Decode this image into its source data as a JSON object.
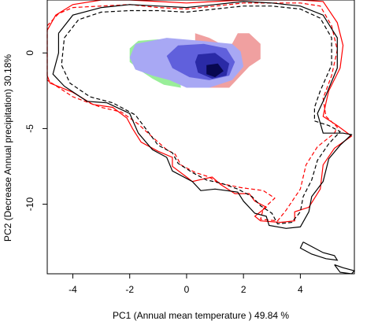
{
  "chart_data": {
    "type": "density-overlap",
    "xlabel": "PC1 (Annual mean temperature ) 49.84 %",
    "ylabel": "PC2 (Decrease Annual precipitation) 30.18%",
    "xlim": [
      -4.9,
      5.9
    ],
    "ylim": [
      -14.6,
      3.5
    ],
    "x_ticks": [
      -4,
      -2,
      0,
      2,
      4
    ],
    "y_ticks": [
      0,
      -5,
      -10
    ],
    "density_regions": [
      {
        "color": "#99ee99",
        "points": [
          [
            -2.0,
            0.3
          ],
          [
            -1.7,
            0.8
          ],
          [
            -1.0,
            0.9
          ],
          [
            -0.4,
            0.6
          ],
          [
            -0.3,
            -0.5
          ],
          [
            -0.2,
            -2.3
          ],
          [
            -0.8,
            -2.1
          ],
          [
            -1.2,
            -1.7
          ],
          [
            -1.6,
            -1.2
          ],
          [
            -2.0,
            -0.6
          ]
        ]
      },
      {
        "color": "#f0a0a0",
        "points": [
          [
            0.3,
            1.3
          ],
          [
            0.8,
            1.0
          ],
          [
            1.2,
            0.6
          ],
          [
            1.6,
            0.6
          ],
          [
            1.8,
            1.3
          ],
          [
            2.2,
            1.3
          ],
          [
            2.6,
            0.6
          ],
          [
            2.6,
            -0.4
          ],
          [
            2.2,
            -0.9
          ],
          [
            1.9,
            -1.5
          ],
          [
            1.5,
            -2.3
          ],
          [
            0.8,
            -2.3
          ],
          [
            0.3,
            -2.0
          ]
        ]
      },
      {
        "color": "#a8a8f4",
        "points": [
          [
            -1.8,
            0.6
          ],
          [
            -0.7,
            1.0
          ],
          [
            0.5,
            0.8
          ],
          [
            1.6,
            0.6
          ],
          [
            1.9,
            0.1
          ],
          [
            2.0,
            -0.9
          ],
          [
            1.6,
            -1.8
          ],
          [
            0.8,
            -2.3
          ],
          [
            0.0,
            -2.3
          ],
          [
            -0.6,
            -1.8
          ],
          [
            -1.2,
            -1.5
          ],
          [
            -1.8,
            -1.1
          ],
          [
            -2.0,
            -0.3
          ]
        ]
      },
      {
        "color": "#6060dc",
        "points": [
          [
            -0.3,
            0.5
          ],
          [
            0.6,
            0.6
          ],
          [
            1.4,
            0.3
          ],
          [
            1.7,
            -0.6
          ],
          [
            1.5,
            -1.5
          ],
          [
            0.8,
            -1.8
          ],
          [
            0.1,
            -1.6
          ],
          [
            -0.5,
            -1.0
          ],
          [
            -0.7,
            -0.2
          ]
        ]
      },
      {
        "color": "#2a2aa6",
        "points": [
          [
            0.4,
            -0.1
          ],
          [
            1.0,
            0.0
          ],
          [
            1.5,
            -0.7
          ],
          [
            1.4,
            -1.5
          ],
          [
            0.9,
            -1.7
          ],
          [
            0.4,
            -1.3
          ],
          [
            0.3,
            -0.6
          ]
        ]
      },
      {
        "color": "#080850",
        "points": [
          [
            0.7,
            -0.8
          ],
          [
            1.1,
            -0.7
          ],
          [
            1.3,
            -1.2
          ],
          [
            1.0,
            -1.6
          ],
          [
            0.7,
            -1.4
          ]
        ]
      }
    ],
    "series": [
      {
        "color": "#ff0000",
        "dash": "solid",
        "points": [
          [
            -4.9,
            1.5
          ],
          [
            -4.6,
            2.5
          ],
          [
            -4.0,
            3.2
          ],
          [
            -3.0,
            3.5
          ],
          [
            -2.0,
            3.5
          ],
          [
            -1.0,
            3.4
          ],
          [
            0.0,
            3.3
          ],
          [
            1.0,
            3.4
          ],
          [
            2.0,
            3.5
          ],
          [
            3.0,
            3.5
          ],
          [
            4.0,
            3.5
          ],
          [
            4.8,
            3.4
          ],
          [
            5.3,
            2.0
          ],
          [
            5.5,
            0.5
          ],
          [
            5.4,
            -1.0
          ],
          [
            5.0,
            -2.5
          ],
          [
            4.9,
            -3.3
          ],
          [
            4.8,
            -4.2
          ],
          [
            5.3,
            -4.8
          ],
          [
            5.8,
            -5.5
          ],
          [
            5.2,
            -6.3
          ],
          [
            4.8,
            -7.4
          ],
          [
            4.7,
            -9.0
          ],
          [
            4.3,
            -10.2
          ],
          [
            3.8,
            -10.5
          ],
          [
            3.8,
            -11.1
          ],
          [
            3.3,
            -11.2
          ],
          [
            2.6,
            -11.1
          ],
          [
            2.4,
            -10.8
          ],
          [
            2.8,
            -10.2
          ],
          [
            2.4,
            -9.8
          ],
          [
            2.2,
            -9.3
          ],
          [
            1.7,
            -9.3
          ],
          [
            1.2,
            -8.7
          ],
          [
            0.9,
            -8.2
          ],
          [
            0.2,
            -8.5
          ],
          [
            0.0,
            -8.2
          ],
          [
            -0.5,
            -7.5
          ],
          [
            -0.5,
            -6.9
          ],
          [
            -1.0,
            -6.5
          ],
          [
            -1.6,
            -5.9
          ],
          [
            -1.9,
            -5.0
          ],
          [
            -2.1,
            -4.3
          ],
          [
            -2.6,
            -3.6
          ],
          [
            -3.3,
            -3.4
          ],
          [
            -4.0,
            -2.6
          ],
          [
            -4.8,
            -2.0
          ],
          [
            -4.9,
            -1.5
          ]
        ]
      },
      {
        "color": "#ff0000",
        "dash": "dashed",
        "points": [
          [
            -4.9,
            1.8
          ],
          [
            -4.5,
            2.6
          ],
          [
            -4.0,
            3.0
          ],
          [
            -3.0,
            3.1
          ],
          [
            -2.0,
            3.2
          ],
          [
            -1.0,
            3.0
          ],
          [
            0.0,
            2.9
          ],
          [
            1.0,
            3.1
          ],
          [
            2.0,
            3.3
          ],
          [
            3.0,
            3.3
          ],
          [
            4.0,
            3.3
          ],
          [
            4.7,
            3.1
          ],
          [
            5.1,
            1.8
          ],
          [
            5.3,
            0.2
          ],
          [
            5.1,
            -1.5
          ],
          [
            4.8,
            -3.0
          ],
          [
            4.9,
            -4.2
          ],
          [
            5.3,
            -4.9
          ],
          [
            5.2,
            -5.3
          ],
          [
            4.6,
            -6.2
          ],
          [
            4.2,
            -7.4
          ],
          [
            4.0,
            -9.0
          ],
          [
            3.5,
            -10.4
          ],
          [
            3.2,
            -11.1
          ],
          [
            2.6,
            -11.0
          ],
          [
            2.7,
            -10.3
          ],
          [
            3.1,
            -9.6
          ],
          [
            2.7,
            -9.1
          ],
          [
            1.9,
            -8.9
          ],
          [
            1.1,
            -8.6
          ],
          [
            0.8,
            -8.2
          ],
          [
            0.3,
            -7.9
          ],
          [
            -0.2,
            -7.4
          ],
          [
            -0.4,
            -6.7
          ],
          [
            -0.7,
            -6.4
          ],
          [
            -1.3,
            -5.4
          ],
          [
            -1.7,
            -4.7
          ],
          [
            -2.3,
            -3.9
          ],
          [
            -3.0,
            -3.6
          ],
          [
            -4.0,
            -2.9
          ],
          [
            -4.9,
            -1.8
          ]
        ]
      },
      {
        "color": "#000000",
        "dash": "solid",
        "points": [
          [
            -4.5,
            1.3
          ],
          [
            -4.0,
            2.5
          ],
          [
            -3.0,
            3.0
          ],
          [
            -2.0,
            3.2
          ],
          [
            -1.0,
            3.1
          ],
          [
            0.0,
            3.0
          ],
          [
            1.0,
            3.2
          ],
          [
            2.0,
            3.4
          ],
          [
            3.0,
            3.3
          ],
          [
            4.0,
            3.1
          ],
          [
            4.8,
            2.5
          ],
          [
            5.3,
            1.0
          ],
          [
            5.3,
            -1.0
          ],
          [
            4.9,
            -2.8
          ],
          [
            4.6,
            -4.0
          ],
          [
            4.8,
            -5.3
          ],
          [
            5.5,
            -5.3
          ],
          [
            5.8,
            -5.4
          ],
          [
            5.4,
            -6.1
          ],
          [
            5.0,
            -7.0
          ],
          [
            4.8,
            -8.5
          ],
          [
            4.4,
            -9.5
          ],
          [
            4.3,
            -10.5
          ],
          [
            4.0,
            -11.5
          ],
          [
            3.5,
            -11.6
          ],
          [
            2.9,
            -11.4
          ],
          [
            2.8,
            -10.8
          ],
          [
            2.4,
            -10.6
          ],
          [
            2.0,
            -9.8
          ],
          [
            1.8,
            -9.2
          ],
          [
            1.0,
            -9.0
          ],
          [
            0.5,
            -9.1
          ],
          [
            0.2,
            -8.5
          ],
          [
            -0.5,
            -7.8
          ],
          [
            -0.7,
            -6.9
          ],
          [
            -1.2,
            -6.4
          ],
          [
            -1.7,
            -5.3
          ],
          [
            -2.0,
            -4.0
          ],
          [
            -2.8,
            -3.3
          ],
          [
            -3.5,
            -3.2
          ],
          [
            -4.3,
            -2.2
          ],
          [
            -4.7,
            -1.4
          ],
          [
            -4.5,
            0.0
          ]
        ]
      },
      {
        "color": "#000000",
        "dash": "dashed",
        "points": [
          [
            -4.3,
            1.0
          ],
          [
            -3.8,
            2.2
          ],
          [
            -3.0,
            2.7
          ],
          [
            -2.0,
            2.8
          ],
          [
            -1.0,
            2.8
          ],
          [
            0.0,
            2.7
          ],
          [
            1.0,
            2.9
          ],
          [
            2.0,
            3.1
          ],
          [
            3.0,
            3.1
          ],
          [
            4.0,
            2.9
          ],
          [
            4.7,
            2.3
          ],
          [
            5.1,
            1.0
          ],
          [
            5.1,
            -0.8
          ],
          [
            4.7,
            -2.5
          ],
          [
            4.5,
            -3.6
          ],
          [
            4.5,
            -4.5
          ],
          [
            5.0,
            -4.8
          ],
          [
            5.4,
            -5.2
          ],
          [
            5.0,
            -6.0
          ],
          [
            4.6,
            -7.1
          ],
          [
            4.4,
            -8.4
          ],
          [
            4.1,
            -9.5
          ],
          [
            4.0,
            -10.5
          ],
          [
            3.7,
            -11.2
          ],
          [
            3.2,
            -11.3
          ],
          [
            3.0,
            -10.6
          ],
          [
            2.6,
            -10.1
          ],
          [
            2.3,
            -9.5
          ],
          [
            1.8,
            -9.0
          ],
          [
            1.2,
            -8.6
          ],
          [
            0.7,
            -8.4
          ],
          [
            0.2,
            -7.9
          ],
          [
            -0.3,
            -7.3
          ],
          [
            -0.5,
            -6.6
          ],
          [
            -1.0,
            -6.1
          ],
          [
            -1.4,
            -5.1
          ],
          [
            -1.8,
            -4.1
          ],
          [
            -2.6,
            -3.3
          ],
          [
            -3.4,
            -2.9
          ],
          [
            -4.1,
            -2.0
          ],
          [
            -4.4,
            -0.8
          ]
        ]
      },
      {
        "color": "#000000",
        "dash": "solid",
        "points": [
          [
            4.1,
            -12.5
          ],
          [
            4.4,
            -12.8
          ],
          [
            4.8,
            -13.2
          ],
          [
            5.2,
            -13.4
          ],
          [
            5.3,
            -13.7
          ],
          [
            4.9,
            -13.6
          ],
          [
            4.4,
            -13.3
          ],
          [
            4.0,
            -12.9
          ]
        ]
      },
      {
        "color": "#000000",
        "dash": "solid",
        "points": [
          [
            5.2,
            -14.0
          ],
          [
            5.5,
            -14.2
          ],
          [
            5.9,
            -14.4
          ],
          [
            5.8,
            -14.6
          ],
          [
            5.4,
            -14.5
          ]
        ]
      }
    ]
  }
}
